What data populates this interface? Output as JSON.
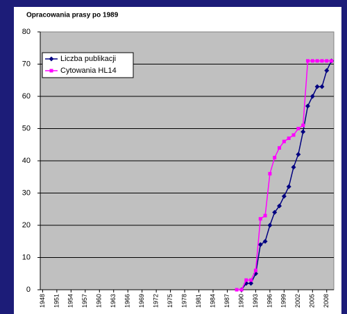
{
  "chart_data": {
    "type": "line",
    "title": "Opracowania prasy po 1989",
    "x": [
      1989,
      1990,
      1991,
      1992,
      1993,
      1994,
      1995,
      1996,
      1997,
      1998,
      1999,
      2000,
      2001,
      2002,
      2003,
      2004,
      2005,
      2006,
      2007,
      2008,
      2009
    ],
    "series": [
      {
        "name": "Liczba publikacji",
        "color": "#000080",
        "marker": "diamond",
        "values": [
          null,
          0,
          2,
          2,
          5,
          14,
          15,
          20,
          24,
          26,
          29,
          32,
          38,
          42,
          49,
          57,
          60,
          63,
          63,
          68,
          71
        ]
      },
      {
        "name": "Cytowania HL14",
        "color": "#ff00ff",
        "marker": "square",
        "values": [
          0,
          0,
          3,
          3,
          6,
          22,
          23,
          36,
          41,
          44,
          46,
          47,
          48,
          50,
          51,
          71,
          71,
          71,
          71,
          71,
          71
        ]
      }
    ],
    "xlim": [
      1947.5,
      2009.5
    ],
    "xticks": [
      1948,
      1951,
      1954,
      1957,
      1960,
      1963,
      1966,
      1969,
      1972,
      1975,
      1978,
      1981,
      1984,
      1987,
      1990,
      1993,
      1996,
      1999,
      2002,
      2005,
      2008
    ],
    "ylim": [
      0,
      80
    ],
    "yticks": [
      0,
      10,
      20,
      30,
      40,
      50,
      60,
      70,
      80
    ],
    "grid": true,
    "legend": "top-left"
  }
}
